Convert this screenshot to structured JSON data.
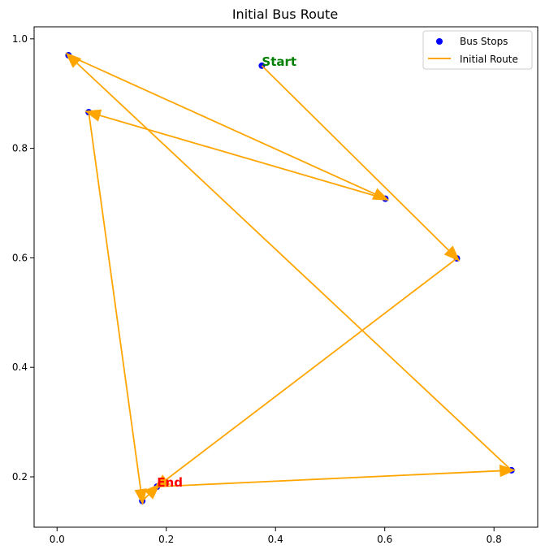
{
  "chart_data": {
    "type": "scatter",
    "title": "Initial Bus Route",
    "xlabel": "",
    "ylabel": "",
    "xlim": [
      -0.042,
      0.88
    ],
    "ylim": [
      0.108,
      1.022
    ],
    "xticks": [
      0.0,
      0.2,
      0.4,
      0.6,
      0.8
    ],
    "yticks": [
      0.2,
      0.4,
      0.6,
      0.8,
      1.0
    ],
    "xtick_labels": [
      "0.0",
      "0.2",
      "0.4",
      "0.6",
      "0.8"
    ],
    "ytick_labels": [
      "0.2",
      "0.4",
      "0.6",
      "0.8",
      "1.0"
    ],
    "grid": false,
    "legend_position": "top-right",
    "series": [
      {
        "name": "Bus Stops",
        "kind": "scatter",
        "color": "#0000ff",
        "points": [
          {
            "x": 0.375,
            "y": 0.951
          },
          {
            "x": 0.732,
            "y": 0.599
          },
          {
            "x": 0.156,
            "y": 0.156
          },
          {
            "x": 0.058,
            "y": 0.866
          },
          {
            "x": 0.601,
            "y": 0.708
          },
          {
            "x": 0.021,
            "y": 0.97
          },
          {
            "x": 0.832,
            "y": 0.212
          },
          {
            "x": 0.183,
            "y": 0.182
          }
        ]
      },
      {
        "name": "Initial Route",
        "kind": "line",
        "color": "#ffa500",
        "order": [
          0,
          1,
          7,
          6,
          5,
          4,
          3,
          2,
          7
        ]
      }
    ],
    "annotations": [
      {
        "text": "Start",
        "x": 0.375,
        "y": 0.951,
        "color": "#008000"
      },
      {
        "text": "End",
        "x": 0.183,
        "y": 0.182,
        "color": "#ff0000"
      }
    ]
  }
}
